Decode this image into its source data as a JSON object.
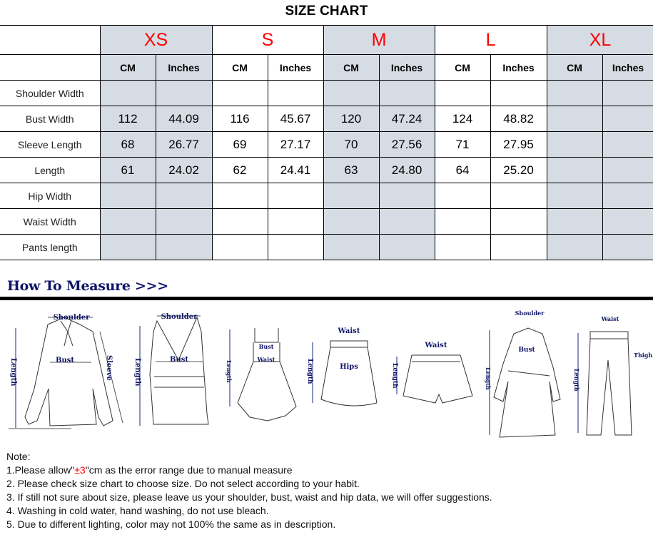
{
  "title": "SIZE CHART",
  "sizes": [
    "XS",
    "S",
    "M",
    "L",
    "XL"
  ],
  "units": [
    "CM",
    "Inches"
  ],
  "size_color": "#ff0000",
  "shade_color": "#d6dce4",
  "rows": [
    {
      "label": "Shoulder Width",
      "values": [
        "",
        "",
        "",
        "",
        "",
        "",
        "",
        "",
        "",
        ""
      ]
    },
    {
      "label": "Bust Width",
      "values": [
        "112",
        "44.09",
        "116",
        "45.67",
        "120",
        "47.24",
        "124",
        "48.82",
        "",
        ""
      ]
    },
    {
      "label": "Sleeve Length",
      "values": [
        "68",
        "26.77",
        "69",
        "27.17",
        "70",
        "27.56",
        "71",
        "27.95",
        "",
        ""
      ]
    },
    {
      "label": "Length",
      "values": [
        "61",
        "24.02",
        "62",
        "24.41",
        "63",
        "24.80",
        "64",
        "25.20",
        "",
        ""
      ]
    },
    {
      "label": "Hip Width",
      "values": [
        "",
        "",
        "",
        "",
        "",
        "",
        "",
        "",
        "",
        ""
      ]
    },
    {
      "label": "Waist Width",
      "values": [
        "",
        "",
        "",
        "",
        "",
        "",
        "",
        "",
        "",
        ""
      ]
    },
    {
      "label": "Pants length",
      "values": [
        "",
        "",
        "",
        "",
        "",
        "",
        "",
        "",
        "",
        ""
      ]
    }
  ],
  "how_to_measure": {
    "title": "How To Measure >>>",
    "labels": {
      "shoulder": "Shoulder",
      "bust": "Bust",
      "sleeve": "Sleeve",
      "length": "Length",
      "waist": "Waist",
      "hips": "Hips",
      "thigh": "Thigh"
    }
  },
  "notes": {
    "heading": "Note:",
    "note1_prefix": "1.Please allow\"",
    "note1_highlight": "±3",
    "note1_suffix": "\"cm as the error range due to manual measure",
    "note2": "2. Please check size chart to choose size. Do not select according to your habit.",
    "note3": "3. If still not sure about size, please leave us your shoulder, bust, waist and hip data, we will offer suggestions.",
    "note4": "4. Washing in cold water, hand washing, do not use bleach.",
    "note5": "5. Due to different lighting, color may not 100% the same as in description."
  }
}
